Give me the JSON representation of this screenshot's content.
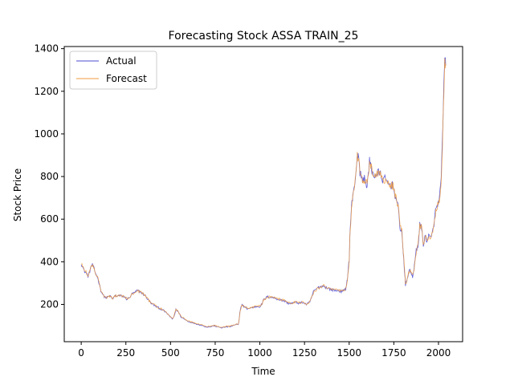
{
  "chart_data": {
    "type": "line",
    "title": "Forecasting Stock ASSA TRAIN_25",
    "xlabel": "Time",
    "ylabel": "Stock Price",
    "xlim": [
      -95,
      2135
    ],
    "ylim": [
      25,
      1410
    ],
    "xticks": [
      0,
      250,
      500,
      750,
      1000,
      1250,
      1500,
      1750,
      2000
    ],
    "yticks": [
      200,
      400,
      600,
      800,
      1000,
      1200,
      1400
    ],
    "legend": {
      "placement": "top-left",
      "entries": [
        "Actual",
        "Forecast"
      ]
    },
    "series": [
      {
        "name": "Actual",
        "color": "#4b4bd6",
        "anchors": [
          [
            0,
            395
          ],
          [
            15,
            360
          ],
          [
            30,
            345
          ],
          [
            40,
            330
          ],
          [
            55,
            380
          ],
          [
            65,
            385
          ],
          [
            75,
            355
          ],
          [
            90,
            330
          ],
          [
            100,
            300
          ],
          [
            110,
            265
          ],
          [
            125,
            240
          ],
          [
            140,
            230
          ],
          [
            150,
            235
          ],
          [
            160,
            240
          ],
          [
            175,
            225
          ],
          [
            190,
            240
          ],
          [
            210,
            240
          ],
          [
            225,
            240
          ],
          [
            240,
            235
          ],
          [
            255,
            225
          ],
          [
            270,
            230
          ],
          [
            285,
            250
          ],
          [
            300,
            255
          ],
          [
            315,
            265
          ],
          [
            330,
            260
          ],
          [
            345,
            250
          ],
          [
            360,
            240
          ],
          [
            380,
            215
          ],
          [
            400,
            200
          ],
          [
            420,
            190
          ],
          [
            440,
            180
          ],
          [
            455,
            175
          ],
          [
            470,
            165
          ],
          [
            490,
            150
          ],
          [
            510,
            130
          ],
          [
            520,
            145
          ],
          [
            530,
            175
          ],
          [
            540,
            170
          ],
          [
            560,
            140
          ],
          [
            580,
            130
          ],
          [
            600,
            120
          ],
          [
            620,
            115
          ],
          [
            640,
            110
          ],
          [
            660,
            105
          ],
          [
            680,
            100
          ],
          [
            700,
            95
          ],
          [
            720,
            95
          ],
          [
            745,
            100
          ],
          [
            760,
            95
          ],
          [
            790,
            90
          ],
          [
            810,
            95
          ],
          [
            830,
            95
          ],
          [
            850,
            100
          ],
          [
            870,
            105
          ],
          [
            880,
            105
          ],
          [
            890,
            175
          ],
          [
            900,
            200
          ],
          [
            910,
            190
          ],
          [
            930,
            180
          ],
          [
            960,
            185
          ],
          [
            980,
            190
          ],
          [
            1000,
            190
          ],
          [
            1010,
            200
          ],
          [
            1020,
            220
          ],
          [
            1040,
            235
          ],
          [
            1060,
            235
          ],
          [
            1080,
            230
          ],
          [
            1100,
            225
          ],
          [
            1120,
            220
          ],
          [
            1140,
            215
          ],
          [
            1160,
            205
          ],
          [
            1180,
            205
          ],
          [
            1200,
            210
          ],
          [
            1220,
            205
          ],
          [
            1240,
            210
          ],
          [
            1260,
            200
          ],
          [
            1280,
            210
          ],
          [
            1300,
            260
          ],
          [
            1320,
            275
          ],
          [
            1340,
            285
          ],
          [
            1360,
            285
          ],
          [
            1380,
            275
          ],
          [
            1400,
            270
          ],
          [
            1420,
            265
          ],
          [
            1440,
            265
          ],
          [
            1460,
            260
          ],
          [
            1480,
            270
          ],
          [
            1490,
            320
          ],
          [
            1500,
            410
          ],
          [
            1505,
            550
          ],
          [
            1515,
            680
          ],
          [
            1520,
            700
          ],
          [
            1530,
            760
          ],
          [
            1540,
            840
          ],
          [
            1545,
            900
          ],
          [
            1550,
            900
          ],
          [
            1560,
            820
          ],
          [
            1575,
            780
          ],
          [
            1585,
            790
          ],
          [
            1600,
            760
          ],
          [
            1610,
            830
          ],
          [
            1615,
            880
          ],
          [
            1620,
            850
          ],
          [
            1630,
            820
          ],
          [
            1645,
            800
          ],
          [
            1660,
            820
          ],
          [
            1675,
            810
          ],
          [
            1690,
            780
          ],
          [
            1700,
            790
          ],
          [
            1715,
            770
          ],
          [
            1730,
            760
          ],
          [
            1745,
            760
          ],
          [
            1760,
            700
          ],
          [
            1775,
            650
          ],
          [
            1785,
            560
          ],
          [
            1795,
            540
          ],
          [
            1805,
            410
          ],
          [
            1815,
            290
          ],
          [
            1825,
            320
          ],
          [
            1835,
            360
          ],
          [
            1845,
            350
          ],
          [
            1855,
            330
          ],
          [
            1865,
            380
          ],
          [
            1875,
            450
          ],
          [
            1885,
            470
          ],
          [
            1895,
            580
          ],
          [
            1905,
            560
          ],
          [
            1915,
            480
          ],
          [
            1925,
            520
          ],
          [
            1935,
            500
          ],
          [
            1945,
            520
          ],
          [
            1960,
            510
          ],
          [
            1975,
            580
          ],
          [
            1985,
            650
          ],
          [
            1995,
            660
          ],
          [
            2005,
            700
          ],
          [
            2015,
            780
          ],
          [
            2025,
            1050
          ],
          [
            2030,
            1220
          ],
          [
            2035,
            1350
          ],
          [
            2040,
            1320
          ]
        ]
      },
      {
        "name": "Forecast",
        "color": "#ef9b3c",
        "anchors": [
          [
            0,
            398
          ],
          [
            15,
            362
          ],
          [
            30,
            348
          ],
          [
            40,
            333
          ],
          [
            55,
            378
          ],
          [
            65,
            388
          ],
          [
            75,
            358
          ],
          [
            90,
            333
          ],
          [
            100,
            303
          ],
          [
            110,
            268
          ],
          [
            125,
            243
          ],
          [
            140,
            232
          ],
          [
            150,
            236
          ],
          [
            160,
            238
          ],
          [
            175,
            228
          ],
          [
            190,
            238
          ],
          [
            210,
            242
          ],
          [
            225,
            238
          ],
          [
            240,
            236
          ],
          [
            255,
            228
          ],
          [
            270,
            232
          ],
          [
            285,
            248
          ],
          [
            300,
            257
          ],
          [
            315,
            263
          ],
          [
            330,
            258
          ],
          [
            345,
            252
          ],
          [
            360,
            238
          ],
          [
            380,
            218
          ],
          [
            400,
            202
          ],
          [
            420,
            192
          ],
          [
            440,
            182
          ],
          [
            455,
            177
          ],
          [
            470,
            167
          ],
          [
            490,
            152
          ],
          [
            510,
            132
          ],
          [
            520,
            148
          ],
          [
            530,
            178
          ],
          [
            540,
            168
          ],
          [
            560,
            142
          ],
          [
            580,
            132
          ],
          [
            600,
            122
          ],
          [
            620,
            117
          ],
          [
            640,
            112
          ],
          [
            660,
            107
          ],
          [
            680,
            102
          ],
          [
            700,
            97
          ],
          [
            720,
            97
          ],
          [
            745,
            102
          ],
          [
            760,
            97
          ],
          [
            790,
            92
          ],
          [
            810,
            97
          ],
          [
            830,
            97
          ],
          [
            850,
            102
          ],
          [
            870,
            107
          ],
          [
            880,
            107
          ],
          [
            890,
            170
          ],
          [
            900,
            198
          ],
          [
            910,
            192
          ],
          [
            930,
            182
          ],
          [
            960,
            187
          ],
          [
            980,
            192
          ],
          [
            1000,
            192
          ],
          [
            1010,
            198
          ],
          [
            1020,
            218
          ],
          [
            1040,
            233
          ],
          [
            1060,
            237
          ],
          [
            1080,
            232
          ],
          [
            1100,
            227
          ],
          [
            1120,
            222
          ],
          [
            1140,
            217
          ],
          [
            1160,
            207
          ],
          [
            1180,
            207
          ],
          [
            1200,
            212
          ],
          [
            1220,
            207
          ],
          [
            1240,
            212
          ],
          [
            1260,
            202
          ],
          [
            1280,
            212
          ],
          [
            1300,
            255
          ],
          [
            1320,
            272
          ],
          [
            1340,
            283
          ],
          [
            1360,
            287
          ],
          [
            1380,
            277
          ],
          [
            1400,
            272
          ],
          [
            1420,
            267
          ],
          [
            1440,
            267
          ],
          [
            1460,
            262
          ],
          [
            1480,
            272
          ],
          [
            1490,
            315
          ],
          [
            1500,
            400
          ],
          [
            1505,
            540
          ],
          [
            1515,
            670
          ],
          [
            1520,
            705
          ],
          [
            1530,
            755
          ],
          [
            1540,
            830
          ],
          [
            1545,
            910
          ],
          [
            1550,
            890
          ],
          [
            1560,
            825
          ],
          [
            1575,
            785
          ],
          [
            1585,
            785
          ],
          [
            1600,
            765
          ],
          [
            1610,
            825
          ],
          [
            1615,
            875
          ],
          [
            1620,
            855
          ],
          [
            1630,
            825
          ],
          [
            1645,
            805
          ],
          [
            1660,
            815
          ],
          [
            1675,
            815
          ],
          [
            1690,
            785
          ],
          [
            1700,
            785
          ],
          [
            1715,
            775
          ],
          [
            1730,
            765
          ],
          [
            1745,
            755
          ],
          [
            1760,
            705
          ],
          [
            1775,
            655
          ],
          [
            1785,
            570
          ],
          [
            1795,
            545
          ],
          [
            1805,
            420
          ],
          [
            1815,
            300
          ],
          [
            1825,
            315
          ],
          [
            1835,
            355
          ],
          [
            1845,
            355
          ],
          [
            1855,
            335
          ],
          [
            1865,
            375
          ],
          [
            1875,
            445
          ],
          [
            1885,
            475
          ],
          [
            1895,
            570
          ],
          [
            1905,
            565
          ],
          [
            1915,
            485
          ],
          [
            1925,
            515
          ],
          [
            1935,
            505
          ],
          [
            1945,
            515
          ],
          [
            1960,
            515
          ],
          [
            1975,
            575
          ],
          [
            1985,
            640
          ],
          [
            1995,
            665
          ],
          [
            2005,
            695
          ],
          [
            2015,
            770
          ],
          [
            2025,
            1030
          ],
          [
            2030,
            1200
          ],
          [
            2035,
            1360
          ],
          [
            2040,
            1330
          ]
        ]
      }
    ]
  }
}
